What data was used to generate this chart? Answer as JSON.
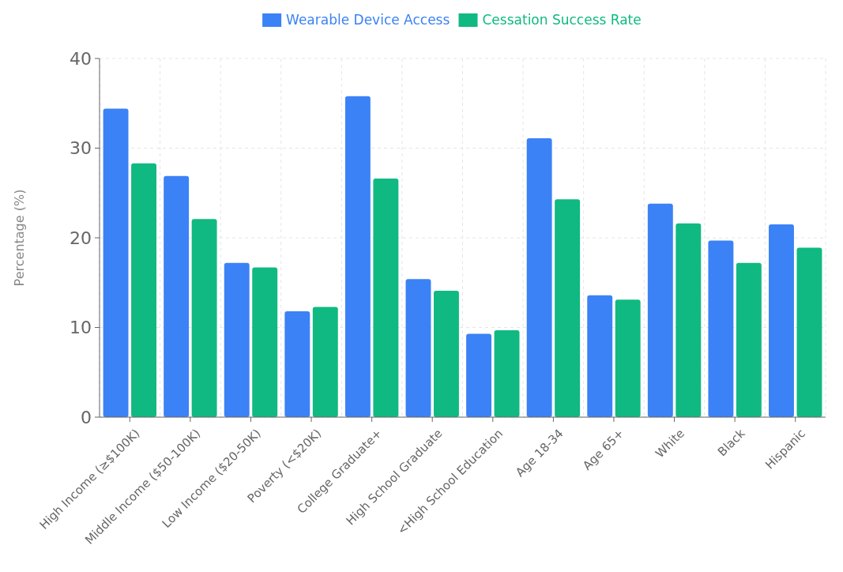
{
  "chart_data": {
    "type": "bar",
    "ylabel": "Percentage (%)",
    "categories": [
      "High Income (≥$100K)",
      "Middle Income ($50-100K)",
      "Low Income ($20-50K)",
      "Poverty (<$20K)",
      "College Graduate+",
      "High School Graduate",
      "<High School Education",
      "Age 18-34",
      "Age 65+",
      "White",
      "Black",
      "Hispanic"
    ],
    "series": [
      {
        "name": "Wearable Device Access",
        "color": "#3b82f6",
        "values": [
          34.4,
          26.9,
          17.2,
          11.8,
          35.8,
          15.4,
          9.3,
          31.1,
          13.6,
          23.8,
          19.7,
          21.5
        ]
      },
      {
        "name": "Cessation Success Rate",
        "color": "#10b981",
        "values": [
          28.3,
          22.1,
          16.7,
          12.3,
          26.6,
          14.1,
          9.7,
          24.3,
          13.1,
          21.6,
          17.2,
          18.9
        ]
      }
    ],
    "ylim": [
      0,
      40
    ],
    "yticks": [
      0,
      10,
      20,
      30,
      40
    ],
    "grid": true,
    "legend": "top"
  }
}
